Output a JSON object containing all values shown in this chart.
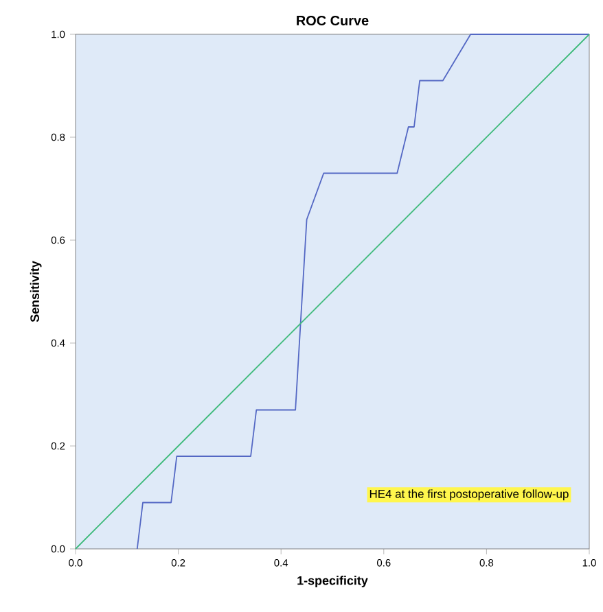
{
  "chart_data": {
    "type": "line",
    "title": "ROC Curve",
    "xlabel": "1-specificity",
    "ylabel": "Sensitivity",
    "xlim": [
      0,
      1
    ],
    "ylim": [
      0,
      1
    ],
    "xticks": [
      {
        "value": 0,
        "label": "0.0"
      },
      {
        "value": 0.2,
        "label": "0.2"
      },
      {
        "value": 0.4,
        "label": "0.4"
      },
      {
        "value": 0.6,
        "label": "0.6"
      },
      {
        "value": 0.8,
        "label": "0.8"
      },
      {
        "value": 1,
        "label": "1.0"
      }
    ],
    "yticks": [
      {
        "value": 0,
        "label": "0.0"
      },
      {
        "value": 0.2,
        "label": "0.2"
      },
      {
        "value": 0.4,
        "label": "0.4"
      },
      {
        "value": 0.6,
        "label": "0.6"
      },
      {
        "value": 0.8,
        "label": "0.8"
      },
      {
        "value": 1,
        "label": "1.0"
      }
    ],
    "series": [
      {
        "color": "#5468c4",
        "x": [
          0.12,
          0.131,
          0.186,
          0.197,
          0.341,
          0.352,
          0.428,
          0.45,
          0.483,
          0.626,
          0.648,
          0.659,
          0.67,
          0.715,
          0.769,
          1.0
        ],
        "values": [
          0,
          0.09,
          0.09,
          0.18,
          0.18,
          0.27,
          0.27,
          0.64,
          0.73,
          0.73,
          0.82,
          0.82,
          0.91,
          0.91,
          1.0,
          1.0
        ]
      },
      {
        "color": "#3dba7a",
        "x": [
          0,
          1
        ],
        "values": [
          0,
          1
        ]
      }
    ],
    "annotations": [
      "HE4 at the first postoperative follow-up"
    ]
  }
}
